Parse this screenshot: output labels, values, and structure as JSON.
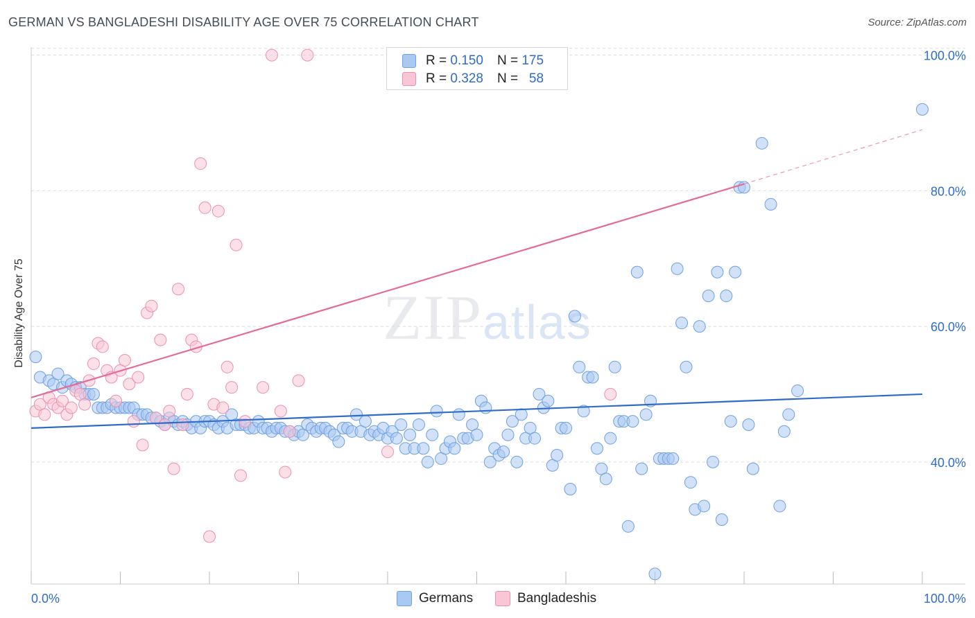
{
  "title": "GERMAN VS BANGLADESHI DISABILITY AGE OVER 75 CORRELATION CHART",
  "source": "Source: ZipAtlas.com",
  "watermark": {
    "zip": "ZIP",
    "atlas": "atlas"
  },
  "stats": [
    {
      "r_label": "R =",
      "r_value": "0.150",
      "n_label": "N =",
      "n_value": "175",
      "color": "#a9c8f2",
      "border": "#6fa0e0"
    },
    {
      "r_label": "R =",
      "r_value": "0.328",
      "n_label": "N =",
      "n_value": "58",
      "color": "#f9c6d6",
      "border": "#ec8fb0"
    }
  ],
  "legend": [
    {
      "label": "Germans",
      "color": "#a9c8f2",
      "border": "#6fa0e0"
    },
    {
      "label": "Bangladeshis",
      "color": "#f9c6d6",
      "border": "#ec8fb0"
    }
  ],
  "chart_data": {
    "type": "scatter",
    "title": "GERMAN VS BANGLADESHI DISABILITY AGE OVER 75 CORRELATION CHART",
    "xlabel": "",
    "ylabel": "Disability Age Over 75",
    "xlim": [
      0,
      100
    ],
    "ylim": [
      22,
      102
    ],
    "x_tick_labels": [
      "0.0%",
      "100.0%"
    ],
    "y_ticks": [
      40,
      60,
      80,
      100
    ],
    "y_tick_labels": [
      "40.0%",
      "60.0%",
      "80.0%",
      "100.0%"
    ],
    "grid": "horizontal dashed",
    "legend_position": "bottom-center",
    "series": [
      {
        "name": "Germans",
        "color": "#6fa0e0",
        "fill": "#a9c8f2",
        "trend": {
          "x": [
            0,
            100
          ],
          "y": [
            45.0,
            50.0
          ],
          "color": "#2f6cc9"
        },
        "points": [
          [
            0.5,
            55.5
          ],
          [
            1,
            52.5
          ],
          [
            2,
            52
          ],
          [
            2.5,
            51.5
          ],
          [
            3,
            53
          ],
          [
            3.5,
            51
          ],
          [
            4,
            52
          ],
          [
            4.5,
            51.5
          ],
          [
            5,
            51
          ],
          [
            5.5,
            51
          ],
          [
            6,
            50
          ],
          [
            6.5,
            50
          ],
          [
            7,
            50
          ],
          [
            7.5,
            48
          ],
          [
            8,
            48
          ],
          [
            8.5,
            48
          ],
          [
            9,
            48.5
          ],
          [
            9.5,
            48
          ],
          [
            10,
            48
          ],
          [
            10.5,
            48
          ],
          [
            11,
            48
          ],
          [
            11.5,
            48
          ],
          [
            12,
            47
          ],
          [
            12.5,
            47
          ],
          [
            13,
            47
          ],
          [
            13.5,
            46.5
          ],
          [
            14,
            46.5
          ],
          [
            14.5,
            46
          ],
          [
            15,
            45.5
          ],
          [
            15.5,
            46.5
          ],
          [
            16,
            46
          ],
          [
            16.5,
            45.5
          ],
          [
            17,
            46
          ],
          [
            17.5,
            45.5
          ],
          [
            18,
            45
          ],
          [
            18.5,
            46
          ],
          [
            19,
            45
          ],
          [
            19.5,
            46
          ],
          [
            20,
            46
          ],
          [
            20.5,
            45.5
          ],
          [
            21,
            45
          ],
          [
            21.5,
            46
          ],
          [
            22,
            45
          ],
          [
            22.5,
            47
          ],
          [
            23,
            45.5
          ],
          [
            23.5,
            45.5
          ],
          [
            24,
            45.5
          ],
          [
            24.5,
            45
          ],
          [
            25,
            45
          ],
          [
            25.5,
            46
          ],
          [
            26,
            45
          ],
          [
            26.5,
            45
          ],
          [
            27,
            44.5
          ],
          [
            27.5,
            45
          ],
          [
            28,
            45
          ],
          [
            28.5,
            44.5
          ],
          [
            29,
            44.5
          ],
          [
            29.5,
            44
          ],
          [
            30,
            44.5
          ],
          [
            30.5,
            44
          ],
          [
            31,
            45.5
          ],
          [
            31.5,
            45
          ],
          [
            32,
            44.5
          ],
          [
            32.5,
            45
          ],
          [
            33,
            45
          ],
          [
            33.5,
            44.5
          ],
          [
            34,
            44
          ],
          [
            34.5,
            43
          ],
          [
            35,
            45
          ],
          [
            35.5,
            45
          ],
          [
            36,
            44.5
          ],
          [
            36.5,
            47
          ],
          [
            37,
            44.5
          ],
          [
            37.5,
            46
          ],
          [
            38,
            44
          ],
          [
            38.5,
            44.5
          ],
          [
            39,
            44
          ],
          [
            39.5,
            45
          ],
          [
            40,
            43.5
          ],
          [
            40.5,
            44.5
          ],
          [
            41,
            43.5
          ],
          [
            41.5,
            45.5
          ],
          [
            42,
            42
          ],
          [
            42.5,
            44
          ],
          [
            43,
            42
          ],
          [
            43.5,
            45.5
          ],
          [
            44,
            42
          ],
          [
            44.5,
            40
          ],
          [
            45,
            44
          ],
          [
            45.5,
            47.5
          ],
          [
            46,
            40.5
          ],
          [
            46.5,
            42
          ],
          [
            47,
            43
          ],
          [
            47.5,
            42
          ],
          [
            48,
            47
          ],
          [
            48.5,
            43.5
          ],
          [
            49,
            43.5
          ],
          [
            49.5,
            45.5
          ],
          [
            50,
            44
          ],
          [
            50.5,
            49
          ],
          [
            51,
            48
          ],
          [
            51.5,
            40
          ],
          [
            52,
            42
          ],
          [
            52.5,
            41
          ],
          [
            53,
            41.5
          ],
          [
            53.5,
            44
          ],
          [
            54,
            46
          ],
          [
            54.5,
            40
          ],
          [
            55,
            47
          ],
          [
            55.5,
            43.5
          ],
          [
            56,
            45
          ],
          [
            56.5,
            43.5
          ],
          [
            57,
            50
          ],
          [
            57.5,
            48
          ],
          [
            58,
            49
          ],
          [
            58.5,
            39.5
          ],
          [
            59,
            41
          ],
          [
            59.5,
            45
          ],
          [
            60,
            45
          ],
          [
            60.5,
            36
          ],
          [
            61,
            61.5
          ],
          [
            61.5,
            54
          ],
          [
            62,
            47.5
          ],
          [
            62.5,
            52.5
          ],
          [
            63,
            52.5
          ],
          [
            63.5,
            42
          ],
          [
            64,
            39
          ],
          [
            64.5,
            37.5
          ],
          [
            65,
            43.5
          ],
          [
            65.5,
            54
          ],
          [
            66,
            46
          ],
          [
            66.5,
            46
          ],
          [
            67,
            30.5
          ],
          [
            67.5,
            46
          ],
          [
            68,
            68
          ],
          [
            68.5,
            39
          ],
          [
            69,
            47
          ],
          [
            69.5,
            49
          ],
          [
            70,
            23.5
          ],
          [
            70.5,
            40.5
          ],
          [
            71,
            40.5
          ],
          [
            71.5,
            40.5
          ],
          [
            72,
            40.5
          ],
          [
            72.5,
            68.5
          ],
          [
            73,
            60.5
          ],
          [
            73.5,
            54
          ],
          [
            74,
            37
          ],
          [
            74.5,
            33
          ],
          [
            75,
            60
          ],
          [
            75.5,
            33.5
          ],
          [
            76,
            64.5
          ],
          [
            76.5,
            40
          ],
          [
            77,
            68
          ],
          [
            77.5,
            31.5
          ],
          [
            78,
            64.5
          ],
          [
            78.5,
            46
          ],
          [
            79,
            68
          ],
          [
            79.5,
            80.5
          ],
          [
            80,
            80.5
          ],
          [
            80.5,
            45.5
          ],
          [
            81,
            39
          ],
          [
            82,
            87
          ],
          [
            83,
            78
          ],
          [
            84,
            33.5
          ],
          [
            84.5,
            44.5
          ],
          [
            85,
            47
          ],
          [
            86,
            50.5
          ],
          [
            100,
            92
          ]
        ]
      },
      {
        "name": "Bangladeshis",
        "color": "#ec8fb0",
        "fill": "#f9c6d6",
        "trend": {
          "x": [
            0,
            80
          ],
          "y": [
            49.5,
            81
          ],
          "color": "#e46b97",
          "dashed_extension": {
            "x": [
              80,
              100
            ],
            "y": [
              81,
              89
            ]
          }
        },
        "points": [
          [
            0.5,
            47.5
          ],
          [
            1,
            48.5
          ],
          [
            1.5,
            47
          ],
          [
            2,
            49.5
          ],
          [
            2.5,
            48.5
          ],
          [
            3,
            48
          ],
          [
            3.5,
            49
          ],
          [
            4,
            47
          ],
          [
            4.5,
            48
          ],
          [
            5,
            50.5
          ],
          [
            5.5,
            50
          ],
          [
            6,
            48.5
          ],
          [
            6.5,
            52
          ],
          [
            7,
            54.5
          ],
          [
            7.5,
            57.5
          ],
          [
            8,
            57
          ],
          [
            8.5,
            53.5
          ],
          [
            9,
            52.5
          ],
          [
            9.5,
            49
          ],
          [
            10,
            53.5
          ],
          [
            10.5,
            55
          ],
          [
            11,
            51.5
          ],
          [
            11.5,
            46
          ],
          [
            12,
            52.5
          ],
          [
            12.5,
            42.5
          ],
          [
            13,
            62
          ],
          [
            13.5,
            63
          ],
          [
            14,
            46.5
          ],
          [
            14.5,
            58
          ],
          [
            15,
            45.5
          ],
          [
            15.5,
            47.5
          ],
          [
            16,
            39
          ],
          [
            16.5,
            65.5
          ],
          [
            17,
            45.5
          ],
          [
            17.5,
            50
          ],
          [
            18,
            58
          ],
          [
            18.5,
            57
          ],
          [
            19,
            84
          ],
          [
            19.5,
            77.5
          ],
          [
            20,
            29
          ],
          [
            20.5,
            48.5
          ],
          [
            21,
            77
          ],
          [
            21.5,
            48
          ],
          [
            22,
            54
          ],
          [
            22.5,
            51
          ],
          [
            23,
            72
          ],
          [
            23.5,
            38
          ],
          [
            24,
            46
          ],
          [
            26,
            51
          ],
          [
            27,
            100
          ],
          [
            28,
            47.5
          ],
          [
            28.5,
            38.5
          ],
          [
            29,
            44.5
          ],
          [
            30,
            52
          ],
          [
            31,
            100
          ],
          [
            40,
            41.5
          ],
          [
            65,
            50
          ]
        ]
      }
    ]
  }
}
